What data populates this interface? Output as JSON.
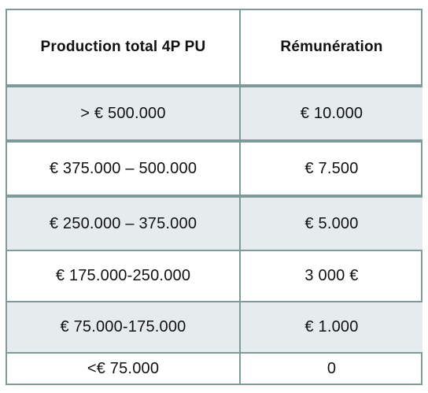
{
  "table": {
    "headers": [
      "Production total 4P PU",
      "Rémunération"
    ],
    "rows": [
      {
        "production": "> € 500.000",
        "remuneration": "€ 10.000"
      },
      {
        "production": "€ 375.000 – 500.000",
        "remuneration": "€ 7.500"
      },
      {
        "production": "€ 250.000 – 375.000",
        "remuneration": "€ 5.000"
      },
      {
        "production": "€ 175.000-250.000",
        "remuneration": "3 000 €"
      },
      {
        "production": "€ 75.000-175.000",
        "remuneration": "€ 1.000"
      },
      {
        "production": "<€ 75.000",
        "remuneration": "0"
      }
    ]
  },
  "colors": {
    "border": "#7e9b9a",
    "shaded_row": "#e6eced"
  }
}
